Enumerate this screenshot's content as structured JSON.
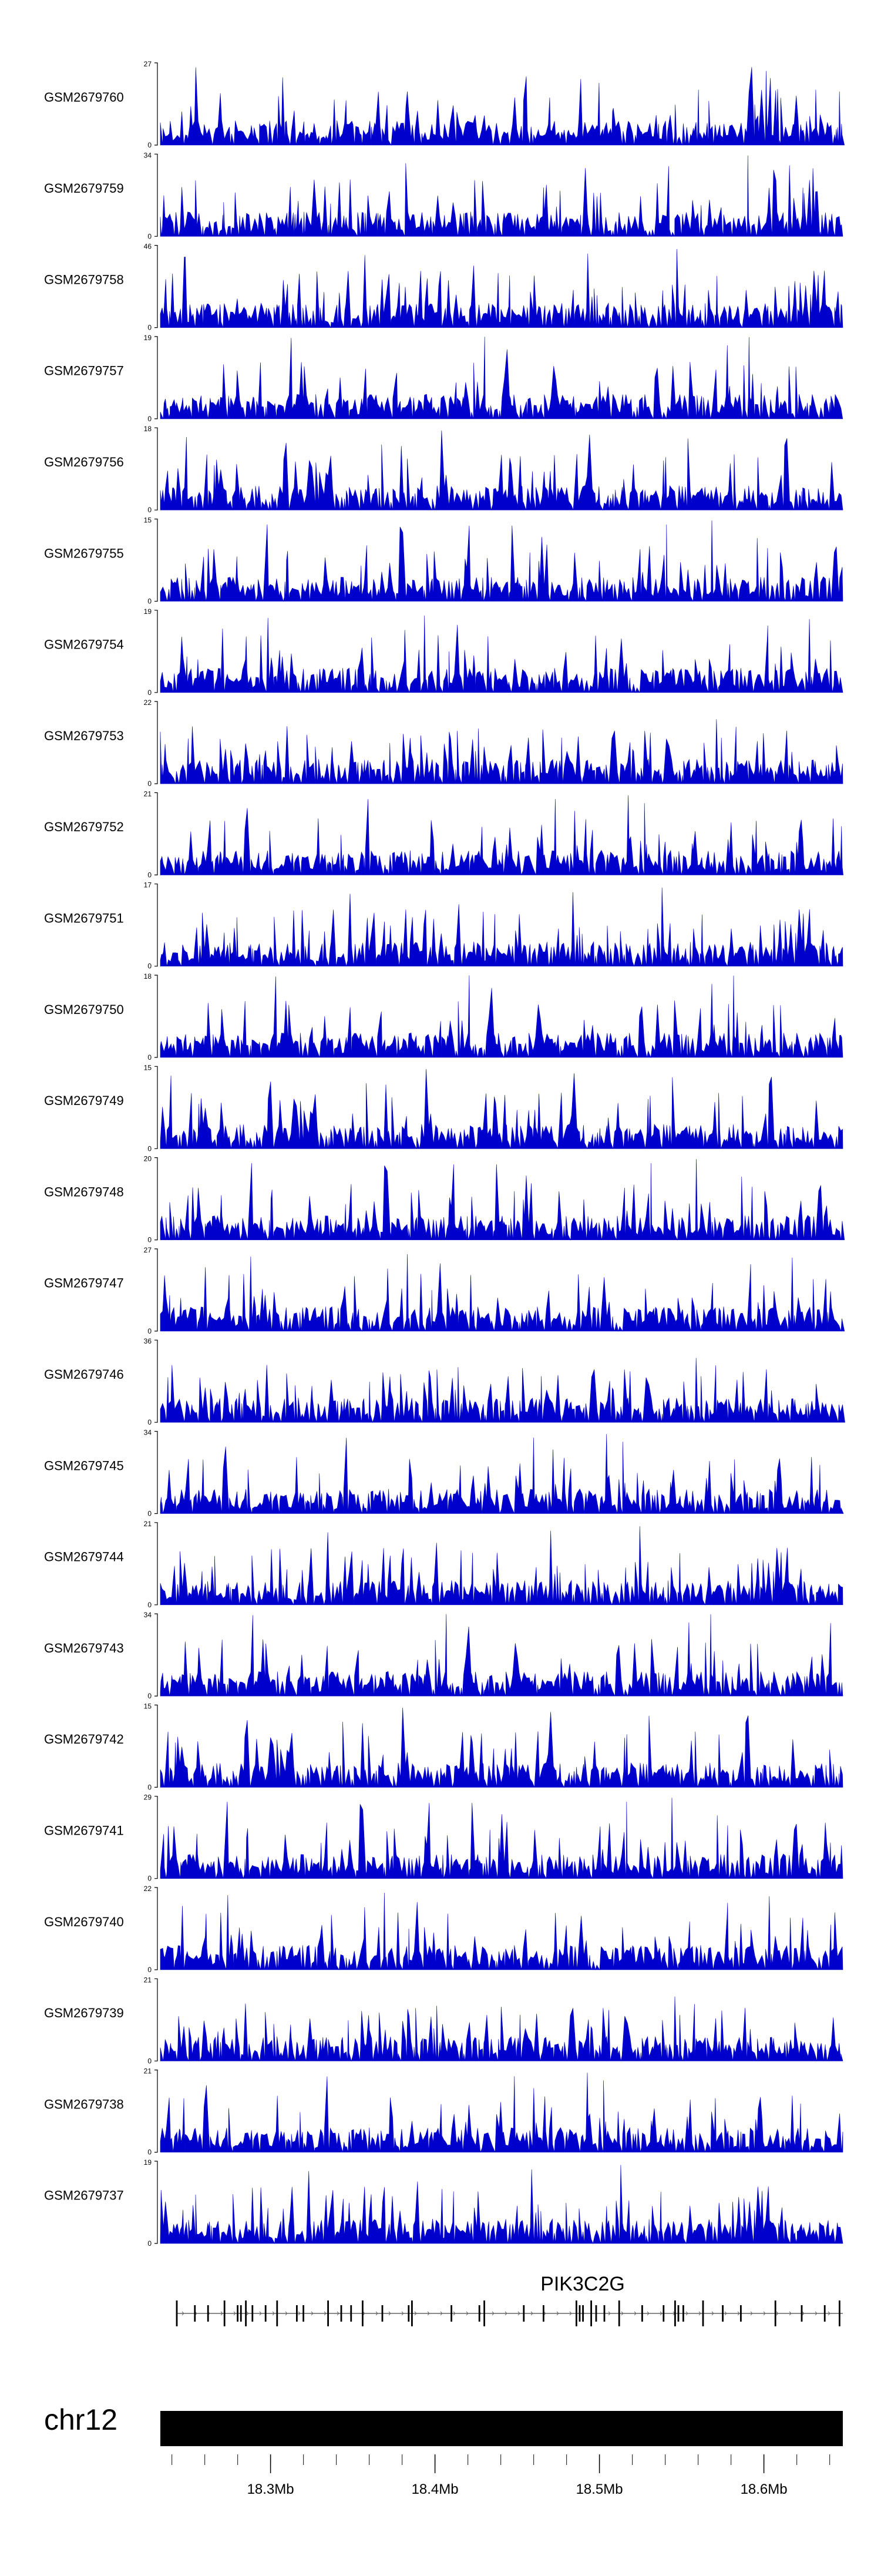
{
  "chart_data": {
    "type": "area",
    "track_color": "#0000CC",
    "x_axis": {
      "chromosome": "chr12",
      "ticks": [
        "18.3Mb",
        "18.4Mb",
        "18.5Mb",
        "18.6Mb"
      ],
      "tick_values_mb": [
        18.3,
        18.4,
        18.5,
        18.6
      ],
      "range_mb": [
        18.233,
        18.648
      ]
    },
    "gene": {
      "name": "PIK3C2G",
      "start_mb": 18.243,
      "end_mb": 18.648,
      "strand": "+"
    },
    "tracks": [
      {
        "name": "GSM2679760",
        "ymax": "27"
      },
      {
        "name": "GSM2679759",
        "ymax": "34"
      },
      {
        "name": "GSM2679758",
        "ymax": "46"
      },
      {
        "name": "GSM2679757",
        "ymax": "19"
      },
      {
        "name": "GSM2679756",
        "ymax": "18"
      },
      {
        "name": "GSM2679755",
        "ymax": "15"
      },
      {
        "name": "GSM2679754",
        "ymax": "19"
      },
      {
        "name": "GSM2679753",
        "ymax": "22"
      },
      {
        "name": "GSM2679752",
        "ymax": "21"
      },
      {
        "name": "GSM2679751",
        "ymax": "17"
      },
      {
        "name": "GSM2679750",
        "ymax": "18"
      },
      {
        "name": "GSM2679749",
        "ymax": "15"
      },
      {
        "name": "GSM2679748",
        "ymax": "20"
      },
      {
        "name": "GSM2679747",
        "ymax": "27"
      },
      {
        "name": "GSM2679746",
        "ymax": "36"
      },
      {
        "name": "GSM2679745",
        "ymax": "34"
      },
      {
        "name": "GSM2679744",
        "ymax": "21"
      },
      {
        "name": "GSM2679743",
        "ymax": "34"
      },
      {
        "name": "GSM2679742",
        "ymax": "15"
      },
      {
        "name": "GSM2679741",
        "ymax": "29"
      },
      {
        "name": "GSM2679740",
        "ymax": "22"
      },
      {
        "name": "GSM2679739",
        "ymax": "21"
      },
      {
        "name": "GSM2679738",
        "ymax": "21"
      },
      {
        "name": "GSM2679737",
        "ymax": "19"
      }
    ]
  }
}
